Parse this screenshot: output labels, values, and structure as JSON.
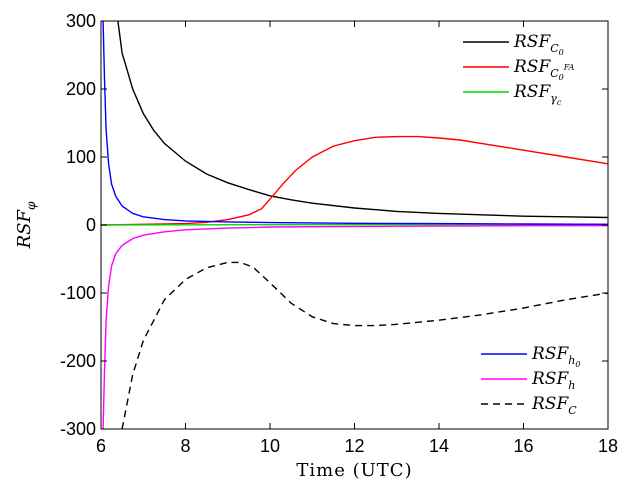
{
  "chart_data": {
    "type": "line",
    "xlabel": "Time (UTC)",
    "ylabel": {
      "base": "RSF",
      "sub": "φ"
    },
    "xlim": [
      6,
      18
    ],
    "ylim": [
      -300,
      300
    ],
    "xticks": [
      6,
      8,
      10,
      12,
      14,
      16,
      18
    ],
    "yticks": [
      -300,
      -200,
      -100,
      0,
      100,
      200,
      300
    ],
    "grid": false,
    "legends": [
      {
        "placement": "top-right",
        "entries": [
          0,
          1,
          2
        ]
      },
      {
        "placement": "bottom-right",
        "entries": [
          3,
          4,
          5
        ]
      }
    ],
    "series": [
      {
        "name": "RSF_C0",
        "label": {
          "base": "RSF",
          "sub": "C",
          "subsub": "0",
          "sup": ""
        },
        "color": "#000000",
        "dash": "solid",
        "x": [
          6.4,
          6.5,
          6.75,
          7,
          7.25,
          7.5,
          8,
          8.5,
          9,
          9.5,
          10,
          10.5,
          11,
          12,
          13,
          14,
          15,
          16,
          17,
          18
        ],
        "y": [
          300,
          253,
          200,
          164,
          139,
          120,
          94,
          75,
          62,
          52,
          43,
          37,
          32,
          25,
          20,
          17,
          15,
          13,
          12,
          11
        ]
      },
      {
        "name": "RSF_C0FA",
        "label": {
          "base": "RSF",
          "sub": "C",
          "subsub": "0",
          "sup": "FA"
        },
        "color": "#ff0000",
        "dash": "solid",
        "x": [
          6,
          7,
          8,
          8.5,
          9,
          9.5,
          9.8,
          10,
          10.3,
          10.6,
          11,
          11.5,
          12,
          12.5,
          13,
          13.5,
          14,
          14.5,
          15,
          16,
          17,
          18
        ],
        "y": [
          0,
          1,
          2,
          4,
          8,
          15,
          24,
          38,
          60,
          80,
          100,
          116,
          124,
          129,
          130,
          130,
          128,
          125,
          120,
          110,
          100,
          90
        ]
      },
      {
        "name": "RSF_gammac",
        "label": {
          "base": "RSF",
          "sub": "γ",
          "subsub": "c",
          "sup": ""
        },
        "color": "#00dd00",
        "dash": "solid",
        "x": [
          6,
          10,
          14,
          18
        ],
        "y": [
          0,
          0.5,
          0.8,
          1
        ]
      },
      {
        "name": "RSF_h0",
        "label": {
          "base": "RSF",
          "sub": "h",
          "subsub": "0",
          "sup": ""
        },
        "color": "#0000ff",
        "dash": "solid",
        "x": [
          6.05,
          6.08,
          6.12,
          6.18,
          6.25,
          6.35,
          6.5,
          6.75,
          7,
          7.5,
          8,
          9,
          10,
          12,
          14,
          16,
          18
        ],
        "y": [
          300,
          220,
          140,
          90,
          60,
          42,
          28,
          17,
          12,
          8,
          6,
          4.5,
          3.5,
          2.5,
          2,
          1.5,
          1
        ]
      },
      {
        "name": "RSF_h",
        "label": {
          "base": "RSF",
          "sub": "h",
          "subsub": "",
          "sup": ""
        },
        "color": "#ff00ff",
        "dash": "solid",
        "x": [
          6.05,
          6.08,
          6.12,
          6.18,
          6.25,
          6.35,
          6.5,
          6.75,
          7,
          7.5,
          8,
          9,
          10,
          12,
          14,
          16,
          18
        ],
        "y": [
          -300,
          -220,
          -140,
          -90,
          -60,
          -42,
          -30,
          -20,
          -15,
          -10,
          -7,
          -4.5,
          -3,
          -2,
          -1.5,
          -1,
          -1
        ]
      },
      {
        "name": "RSF_C",
        "label": {
          "base": "RSF",
          "sub": "C",
          "subsub": "",
          "sup": ""
        },
        "color": "#000000",
        "dash": "dashed",
        "x": [
          6.5,
          6.75,
          7,
          7.5,
          8,
          8.5,
          9,
          9.3,
          9.6,
          10,
          10.5,
          11,
          11.5,
          12,
          12.5,
          13,
          14,
          15,
          16,
          17,
          18
        ],
        "y": [
          -300,
          -220,
          -170,
          -110,
          -80,
          -63,
          -55,
          -55,
          -62,
          -85,
          -115,
          -135,
          -145,
          -148,
          -148,
          -146,
          -140,
          -132,
          -122,
          -110,
          -100
        ]
      }
    ]
  }
}
